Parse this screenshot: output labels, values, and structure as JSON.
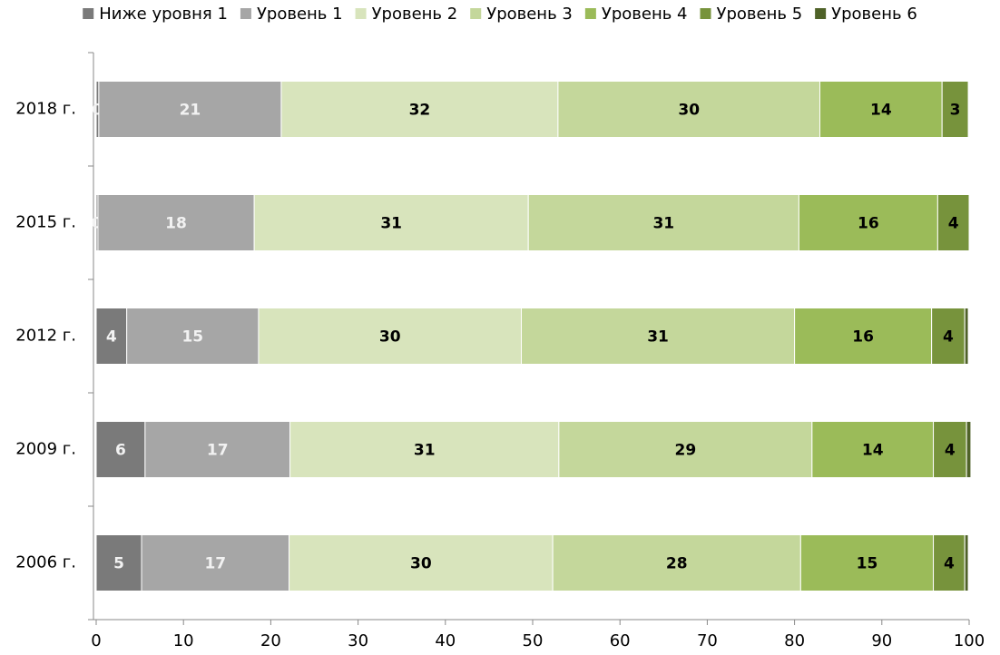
{
  "chart_data": {
    "type": "stacked-bar-horizontal",
    "categories": [
      "2018 г.",
      "2015 г.",
      "2012 г.",
      "2009 г.",
      "2006 г."
    ],
    "series": [
      {
        "name": "Ниже уровня 1",
        "color": "#7a7a7a",
        "label_color": "#f2f2f2",
        "values": [
          0.3,
          0.2,
          3.5,
          5.6,
          5.2
        ],
        "value_labels": [
          "0",
          "0",
          "4",
          "6",
          "5"
        ]
      },
      {
        "name": "Уровень 1",
        "color": "#a6a6a6",
        "label_color": "#f2f2f2",
        "values": [
          20.9,
          17.9,
          15.1,
          16.6,
          16.9
        ],
        "value_labels": [
          "21",
          "18",
          "15",
          "17",
          "17"
        ]
      },
      {
        "name": "Уровень 2",
        "color": "#d8e4bc",
        "label_color": "#000000",
        "values": [
          31.7,
          31.4,
          30.1,
          30.8,
          30.2
        ],
        "value_labels": [
          "32",
          "31",
          "30",
          "31",
          "30"
        ]
      },
      {
        "name": "Уровень 3",
        "color": "#c4d79b",
        "label_color": "#000000",
        "values": [
          30.0,
          31.0,
          31.3,
          29.0,
          28.4
        ],
        "value_labels": [
          "30",
          "31",
          "31",
          "29",
          "28"
        ]
      },
      {
        "name": "Уровень 4",
        "color": "#9bbb59",
        "label_color": "#000000",
        "values": [
          14.0,
          15.9,
          15.7,
          13.9,
          15.2
        ],
        "value_labels": [
          "14",
          "16",
          "16",
          "14",
          "15"
        ]
      },
      {
        "name": "Уровень 5",
        "color": "#77933c",
        "label_color": "#000000",
        "values": [
          3.0,
          3.6,
          3.8,
          3.8,
          3.6
        ],
        "value_labels": [
          "3",
          "4",
          "4",
          "4",
          "4"
        ]
      },
      {
        "name": "Уровень 6",
        "color": "#4f6228",
        "label_color": "#000000",
        "values": [
          null,
          null,
          0.4,
          0.5,
          0.4
        ],
        "value_labels": [
          null,
          null,
          null,
          null,
          null
        ]
      }
    ],
    "xlim": [
      0,
      100
    ],
    "xticks": [
      0,
      10,
      20,
      30,
      40,
      50,
      60,
      70,
      80,
      90,
      100
    ],
    "legend": "top"
  }
}
